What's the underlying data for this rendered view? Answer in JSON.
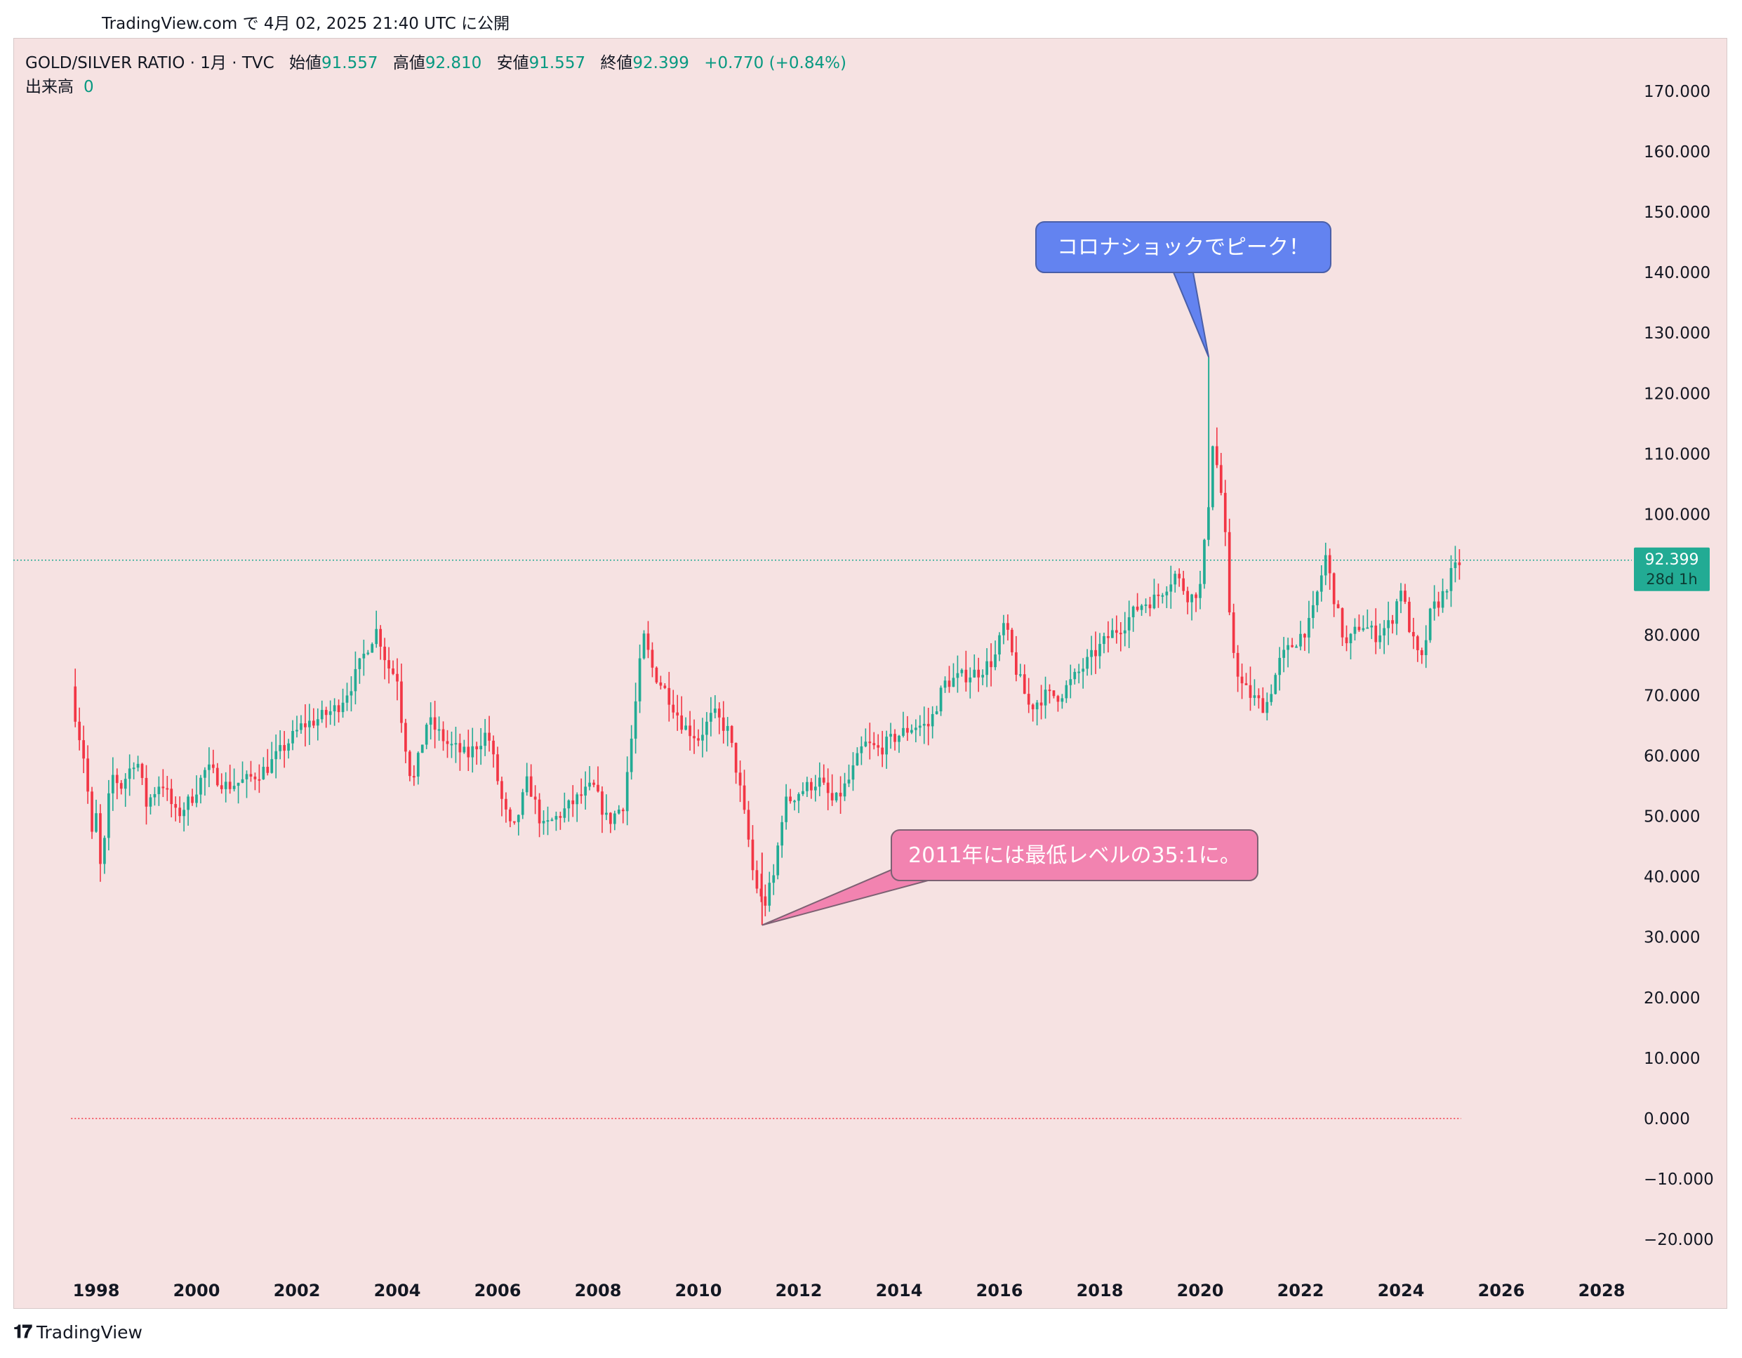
{
  "header": {
    "published": "TradingView.com で 4月 02, 2025 21:40 UTC に公開"
  },
  "legend": {
    "symbol": "GOLD/SILVER RATIO · 1月 · TVC",
    "open_label": "始値",
    "open": "91.557",
    "high_label": "高値",
    "high": "92.810",
    "low_label": "安値",
    "low": "91.557",
    "close_label": "終値",
    "close": "92.399",
    "change": "+0.770 (+0.84%)",
    "volume_label": "出来高",
    "volume": "0"
  },
  "price_tag": {
    "price": "92.399",
    "countdown": "28d 1h"
  },
  "annotations": {
    "peak": "コロナショックでピーク！",
    "low": "2011年には最低レベルの35:1に。"
  },
  "footer": {
    "brand": "TradingView"
  },
  "colors": {
    "up": "#22ab94",
    "down": "#f23645",
    "panel_bg": "#f6e2e2",
    "peak_bubble": "#6383f0",
    "low_bubble": "#f283b0"
  },
  "chart_data": {
    "type": "candlestick",
    "title": "GOLD/SILVER RATIO · 1月 · TVC",
    "interval": "monthly",
    "ylim": [
      -20,
      170
    ],
    "y_ticks": [
      "170.000",
      "160.000",
      "150.000",
      "140.000",
      "130.000",
      "120.000",
      "110.000",
      "100.000",
      "90.000",
      "80.000",
      "70.000",
      "60.000",
      "50.000",
      "40.000",
      "30.000",
      "20.000",
      "10.000",
      "0.000",
      "−10.000",
      "−20.000"
    ],
    "y_tick_values": [
      170,
      160,
      150,
      140,
      130,
      120,
      110,
      100,
      90,
      80,
      70,
      60,
      50,
      40,
      30,
      20,
      10,
      0,
      -10,
      -20
    ],
    "x_ticks": [
      "1998",
      "2000",
      "2002",
      "2004",
      "2006",
      "2008",
      "2010",
      "2012",
      "2014",
      "2016",
      "2018",
      "2020",
      "2022",
      "2024",
      "2026",
      "2028"
    ],
    "x_tick_values": [
      1998,
      2000,
      2002,
      2004,
      2006,
      2008,
      2010,
      2012,
      2014,
      2016,
      2018,
      2020,
      2022,
      2024,
      2026,
      2028
    ],
    "xlim": [
      1997.18,
      2028.97
    ],
    "last_price": 92.399,
    "zero_line": 0,
    "series": [
      {
        "name": "GOLD/SILVER RATIO",
        "points": [
          [
            1997.5,
            71.5
          ],
          [
            1997.6,
            66
          ],
          [
            1997.8,
            58
          ],
          [
            1997.9,
            46
          ],
          [
            1998.0,
            50
          ],
          [
            1998.1,
            40
          ],
          [
            1998.3,
            57
          ],
          [
            1998.5,
            55
          ],
          [
            1998.8,
            60
          ],
          [
            1999.0,
            52
          ],
          [
            1999.3,
            56
          ],
          [
            1999.6,
            50
          ],
          [
            1999.9,
            53
          ],
          [
            2000.2,
            58
          ],
          [
            2000.6,
            55
          ],
          [
            2001.0,
            56
          ],
          [
            2001.4,
            58
          ],
          [
            2001.8,
            62
          ],
          [
            2002.1,
            65
          ],
          [
            2002.4,
            66
          ],
          [
            2002.8,
            68
          ],
          [
            2003.1,
            72
          ],
          [
            2003.4,
            78
          ],
          [
            2003.6,
            81
          ],
          [
            2003.8,
            75
          ],
          [
            2004.0,
            73
          ],
          [
            2004.1,
            65
          ],
          [
            2004.3,
            55
          ],
          [
            2004.6,
            66
          ],
          [
            2005.0,
            62
          ],
          [
            2005.4,
            60
          ],
          [
            2005.8,
            64
          ],
          [
            2006.1,
            52
          ],
          [
            2006.3,
            47
          ],
          [
            2006.6,
            56
          ],
          [
            2006.9,
            48
          ],
          [
            2007.2,
            50
          ],
          [
            2007.6,
            53
          ],
          [
            2007.9,
            55
          ],
          [
            2008.2,
            49
          ],
          [
            2008.5,
            52
          ],
          [
            2008.7,
            65
          ],
          [
            2008.9,
            80
          ],
          [
            2009.1,
            74
          ],
          [
            2009.4,
            70
          ],
          [
            2009.7,
            65
          ],
          [
            2010.0,
            63
          ],
          [
            2010.3,
            67
          ],
          [
            2010.6,
            64
          ],
          [
            2010.8,
            56
          ],
          [
            2011.0,
            46
          ],
          [
            2011.1,
            40
          ],
          [
            2011.3,
            35
          ],
          [
            2011.5,
            40
          ],
          [
            2011.7,
            52
          ],
          [
            2012.0,
            54
          ],
          [
            2012.4,
            56
          ],
          [
            2012.7,
            52
          ],
          [
            2013.0,
            56
          ],
          [
            2013.3,
            62
          ],
          [
            2013.6,
            61
          ],
          [
            2013.9,
            63
          ],
          [
            2014.3,
            65
          ],
          [
            2014.6,
            65
          ],
          [
            2014.9,
            72
          ],
          [
            2015.2,
            73
          ],
          [
            2015.6,
            74
          ],
          [
            2015.9,
            76
          ],
          [
            2016.1,
            82
          ],
          [
            2016.3,
            75
          ],
          [
            2016.6,
            68
          ],
          [
            2016.9,
            70
          ],
          [
            2017.2,
            70
          ],
          [
            2017.6,
            74
          ],
          [
            2017.9,
            77
          ],
          [
            2018.2,
            80
          ],
          [
            2018.5,
            82
          ],
          [
            2018.8,
            85
          ],
          [
            2019.1,
            86
          ],
          [
            2019.5,
            90
          ],
          [
            2019.8,
            86
          ],
          [
            2020.0,
            88
          ],
          [
            2020.15,
            100
          ],
          [
            2020.25,
            112
          ],
          [
            2020.4,
            105
          ],
          [
            2020.5,
            96
          ],
          [
            2020.6,
            80
          ],
          [
            2020.8,
            72
          ],
          [
            2021.0,
            70
          ],
          [
            2021.3,
            68
          ],
          [
            2021.6,
            76
          ],
          [
            2021.9,
            79
          ],
          [
            2022.2,
            82
          ],
          [
            2022.5,
            93
          ],
          [
            2022.7,
            85
          ],
          [
            2022.9,
            78
          ],
          [
            2023.2,
            82
          ],
          [
            2023.5,
            80
          ],
          [
            2023.8,
            82
          ],
          [
            2024.0,
            88
          ],
          [
            2024.2,
            80
          ],
          [
            2024.4,
            75
          ],
          [
            2024.6,
            84
          ],
          [
            2024.8,
            86
          ],
          [
            2025.0,
            90
          ],
          [
            2025.2,
            92.4
          ]
        ]
      }
    ],
    "annotations": [
      {
        "text": "コロナショックでピーク！",
        "x": 2020.17,
        "y": 126
      },
      {
        "text": "2011年には最低レベルの35:1に。",
        "x": 2011.27,
        "y": 32
      }
    ]
  }
}
